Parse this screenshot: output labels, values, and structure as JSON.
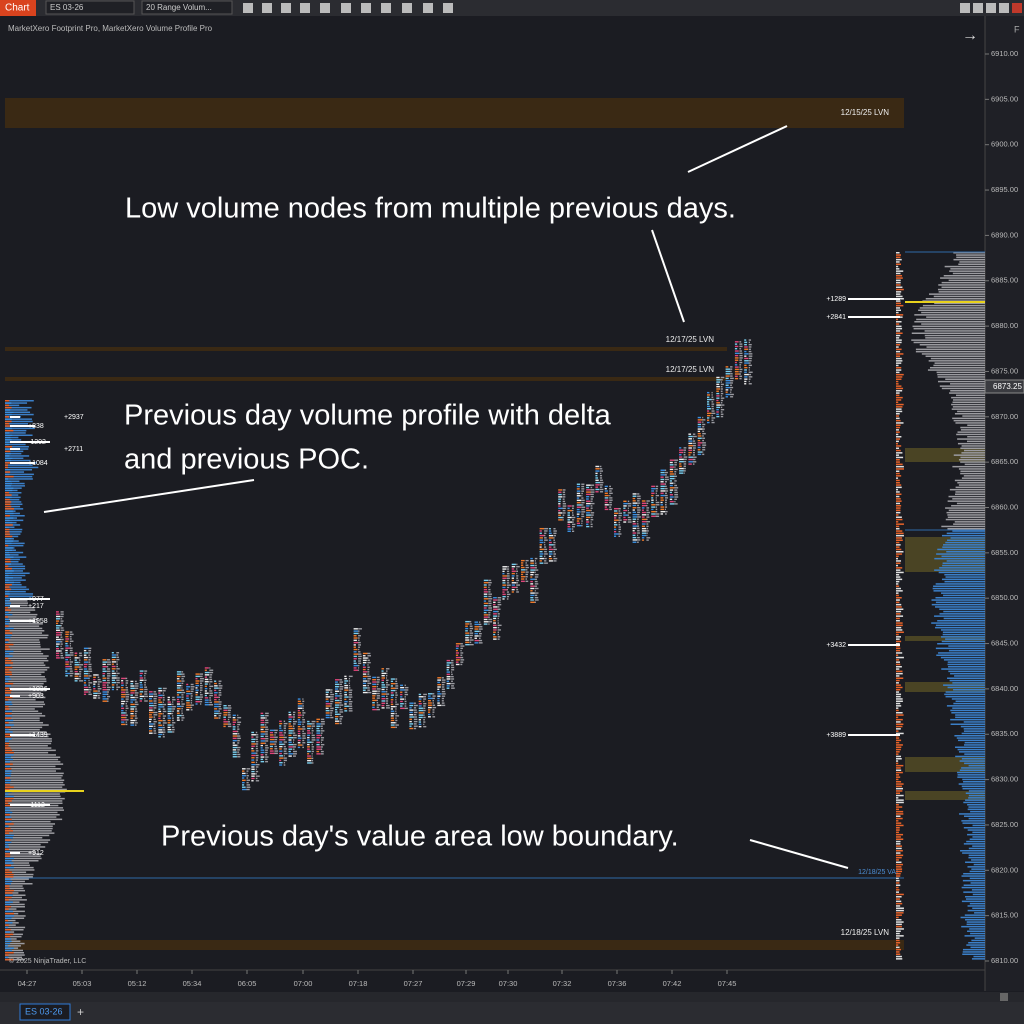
{
  "toolbar": {
    "tab": "Chart",
    "instrument": "ES 03-26",
    "bar_type": "20 Range Volum..."
  },
  "header": "MarketXero Footprint Pro, MarketXero Volume Profile Pro",
  "price_axis": {
    "ticks": [
      "6910.00",
      "6905.00",
      "6900.00",
      "6895.00",
      "6890.00",
      "6885.00",
      "6880.00",
      "6875.00",
      "6870.00",
      "6865.00",
      "6860.00",
      "6855.00",
      "6850.00",
      "6845.00",
      "6840.00",
      "6835.00",
      "6830.00",
      "6825.00",
      "6820.00",
      "6815.00",
      "6810.00"
    ],
    "current_price": "6873.25",
    "corner": "F"
  },
  "time_axis": [
    "04:27",
    "05:03",
    "05:12",
    "05:34",
    "06:05",
    "07:00",
    "07:18",
    "07:27",
    "07:29",
    "07:30",
    "07:32",
    "07:36",
    "07:42",
    "07:45"
  ],
  "levels": {
    "lvn_1215": "12/15/25 LVN",
    "lvn_1217_a": "12/17/25 LVN",
    "lvn_1217_b": "12/17/25 LVN",
    "val_1218": "12/18/25 VAL",
    "lvn_1218": "12/18/25 LVN"
  },
  "left_profile_labels": [
    "+2937",
    "+838",
    "-1202",
    "+2711",
    "+1084",
    "+977",
    "+217",
    "+1958",
    "+1036",
    "+903",
    "+1439",
    "-1112",
    "+912"
  ],
  "right_profile_labels": [
    "+1289",
    "+2841",
    "+3432",
    "+3889"
  ],
  "annotations": {
    "lvn": "Low volume nodes from multiple previous days.",
    "profile_1": "Previous day volume profile with delta",
    "profile_2": "and previous POC.",
    "val": "Previous day's value area low boundary."
  },
  "copyright": "© 2025 NinjaTrader, LLC",
  "bottom_tabs": {
    "instrument": "ES 03-26",
    "add": "+"
  }
}
